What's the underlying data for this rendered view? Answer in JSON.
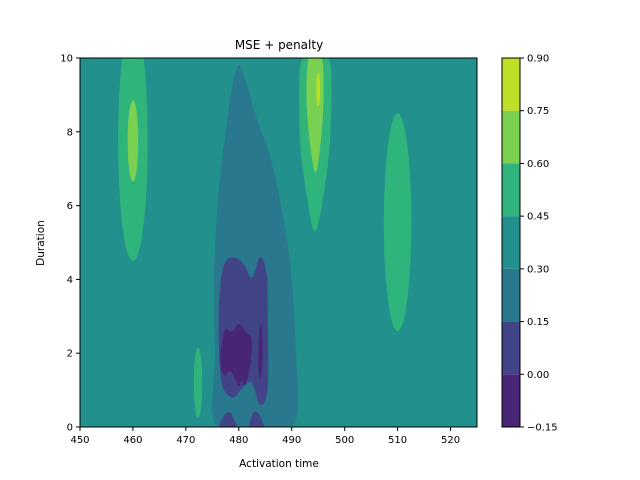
{
  "chart_data": {
    "type": "contour",
    "title": "MSE + penalty",
    "xlabel": "Activation time",
    "ylabel": "Duration",
    "xlim": [
      450,
      525
    ],
    "ylim": [
      0,
      10
    ],
    "xticks": [
      "450",
      "460",
      "470",
      "480",
      "490",
      "500",
      "510",
      "520"
    ],
    "yticks": [
      "0",
      "2",
      "4",
      "6",
      "8",
      "10"
    ],
    "grid": false,
    "colorbar": {
      "levels": [
        -0.15,
        0.0,
        0.15,
        0.3,
        0.45,
        0.6,
        0.75,
        0.9
      ],
      "tick_labels": [
        "−0.15",
        "0.00",
        "0.15",
        "0.30",
        "0.45",
        "0.60",
        "0.75",
        "0.90"
      ],
      "colors": [
        "#482575",
        "#414487",
        "#2a788e",
        "#22908c",
        "#2fb47c",
        "#7ad151",
        "#bddf26"
      ]
    },
    "background_level_index": 3,
    "regions": [
      {
        "level_index": 2,
        "note": "low valley",
        "polygon": [
          [
            476,
            0
          ],
          [
            475.5,
            2
          ],
          [
            475.3,
            4
          ],
          [
            476,
            6
          ],
          [
            477.5,
            8
          ],
          [
            479.5,
            9.7
          ],
          [
            481,
            9.5
          ],
          [
            483.5,
            8.3
          ],
          [
            486,
            7.3
          ],
          [
            488.5,
            5.6
          ],
          [
            490,
            4
          ],
          [
            490.8,
            2
          ],
          [
            491,
            0.3
          ],
          [
            488,
            0
          ]
        ]
      },
      {
        "level_index": 1,
        "note": "lower valley",
        "polygon": [
          [
            476.5,
            1.5
          ],
          [
            476.2,
            3
          ],
          [
            477,
            4.3
          ],
          [
            479,
            4.6
          ],
          [
            481,
            4.4
          ],
          [
            482.5,
            4.05
          ],
          [
            484,
            4.6
          ],
          [
            485.3,
            4.1
          ],
          [
            485.5,
            2.5
          ],
          [
            485.4,
            1.0
          ],
          [
            484,
            0.6
          ],
          [
            482.5,
            1.2
          ],
          [
            481,
            1.1
          ],
          [
            479,
            0.8
          ],
          [
            477.2,
            1.0
          ]
        ]
      },
      {
        "level_index": 1,
        "note": "bottom blob 1",
        "polygon": [
          [
            476.5,
            0
          ],
          [
            477.2,
            0.3
          ],
          [
            478.3,
            0.4
          ],
          [
            479.1,
            0.2
          ],
          [
            479.5,
            0
          ]
        ]
      },
      {
        "level_index": 1,
        "note": "bottom blob 2",
        "polygon": [
          [
            482.1,
            0
          ],
          [
            482.6,
            0.35
          ],
          [
            483.5,
            0.4
          ],
          [
            484.3,
            0.2
          ],
          [
            484.6,
            0
          ]
        ]
      },
      {
        "level_index": 0,
        "note": "minimum",
        "polygon": [
          [
            476.5,
            1.8
          ],
          [
            477.3,
            2.6
          ],
          [
            478.8,
            2.6
          ],
          [
            480,
            2.8
          ],
          [
            481.5,
            2.55
          ],
          [
            482.4,
            2.4
          ],
          [
            482.3,
            1.8
          ],
          [
            481.3,
            1.15
          ],
          [
            480.5,
            1.25
          ],
          [
            480,
            1.1
          ],
          [
            478.5,
            1.5
          ],
          [
            477.2,
            1.4
          ]
        ]
      },
      {
        "level_index": 0,
        "note": "minimum 2",
        "polygon": [
          [
            483.7,
            1.6
          ],
          [
            483.8,
            2.4
          ],
          [
            484.2,
            2.8
          ],
          [
            484.5,
            2.3
          ],
          [
            484.4,
            1.6
          ],
          [
            484.1,
            1.3
          ]
        ]
      },
      {
        "level_index": 4,
        "note": "ridge 1",
        "ellipse": {
          "cx": 460,
          "cy": 7.75,
          "rx": 2.8,
          "ry": 3.25
        }
      },
      {
        "level_index": 5,
        "note": "ridge 1 peak",
        "ellipse": {
          "cx": 460,
          "cy": 7.75,
          "rx": 1.0,
          "ry": 1.1
        }
      },
      {
        "level_index": 4,
        "note": "ridge 2",
        "polygon": [
          [
            492,
            10
          ],
          [
            491.5,
            8
          ],
          [
            492.6,
            6.5
          ],
          [
            494.4,
            5.3
          ],
          [
            496.2,
            6.5
          ],
          [
            497.3,
            8
          ],
          [
            497,
            10
          ]
        ]
      },
      {
        "level_index": 5,
        "note": "ridge 2 upper",
        "polygon": [
          [
            493.2,
            10
          ],
          [
            492.9,
            8.5
          ],
          [
            494.5,
            6.9
          ],
          [
            495.9,
            8.5
          ],
          [
            495.7,
            10
          ]
        ]
      },
      {
        "level_index": 6,
        "note": "ridge 2 peak",
        "ellipse": {
          "cx": 495,
          "cy": 9.15,
          "rx": 0.35,
          "ry": 0.45
        }
      },
      {
        "level_index": 4,
        "note": "ridge 3",
        "ellipse": {
          "cx": 510,
          "cy": 5.55,
          "rx": 2.6,
          "ry": 2.95
        }
      },
      {
        "level_index": 4,
        "note": "small ridge",
        "ellipse": {
          "cx": 472.3,
          "cy": 1.2,
          "rx": 0.8,
          "ry": 0.95
        }
      }
    ]
  }
}
